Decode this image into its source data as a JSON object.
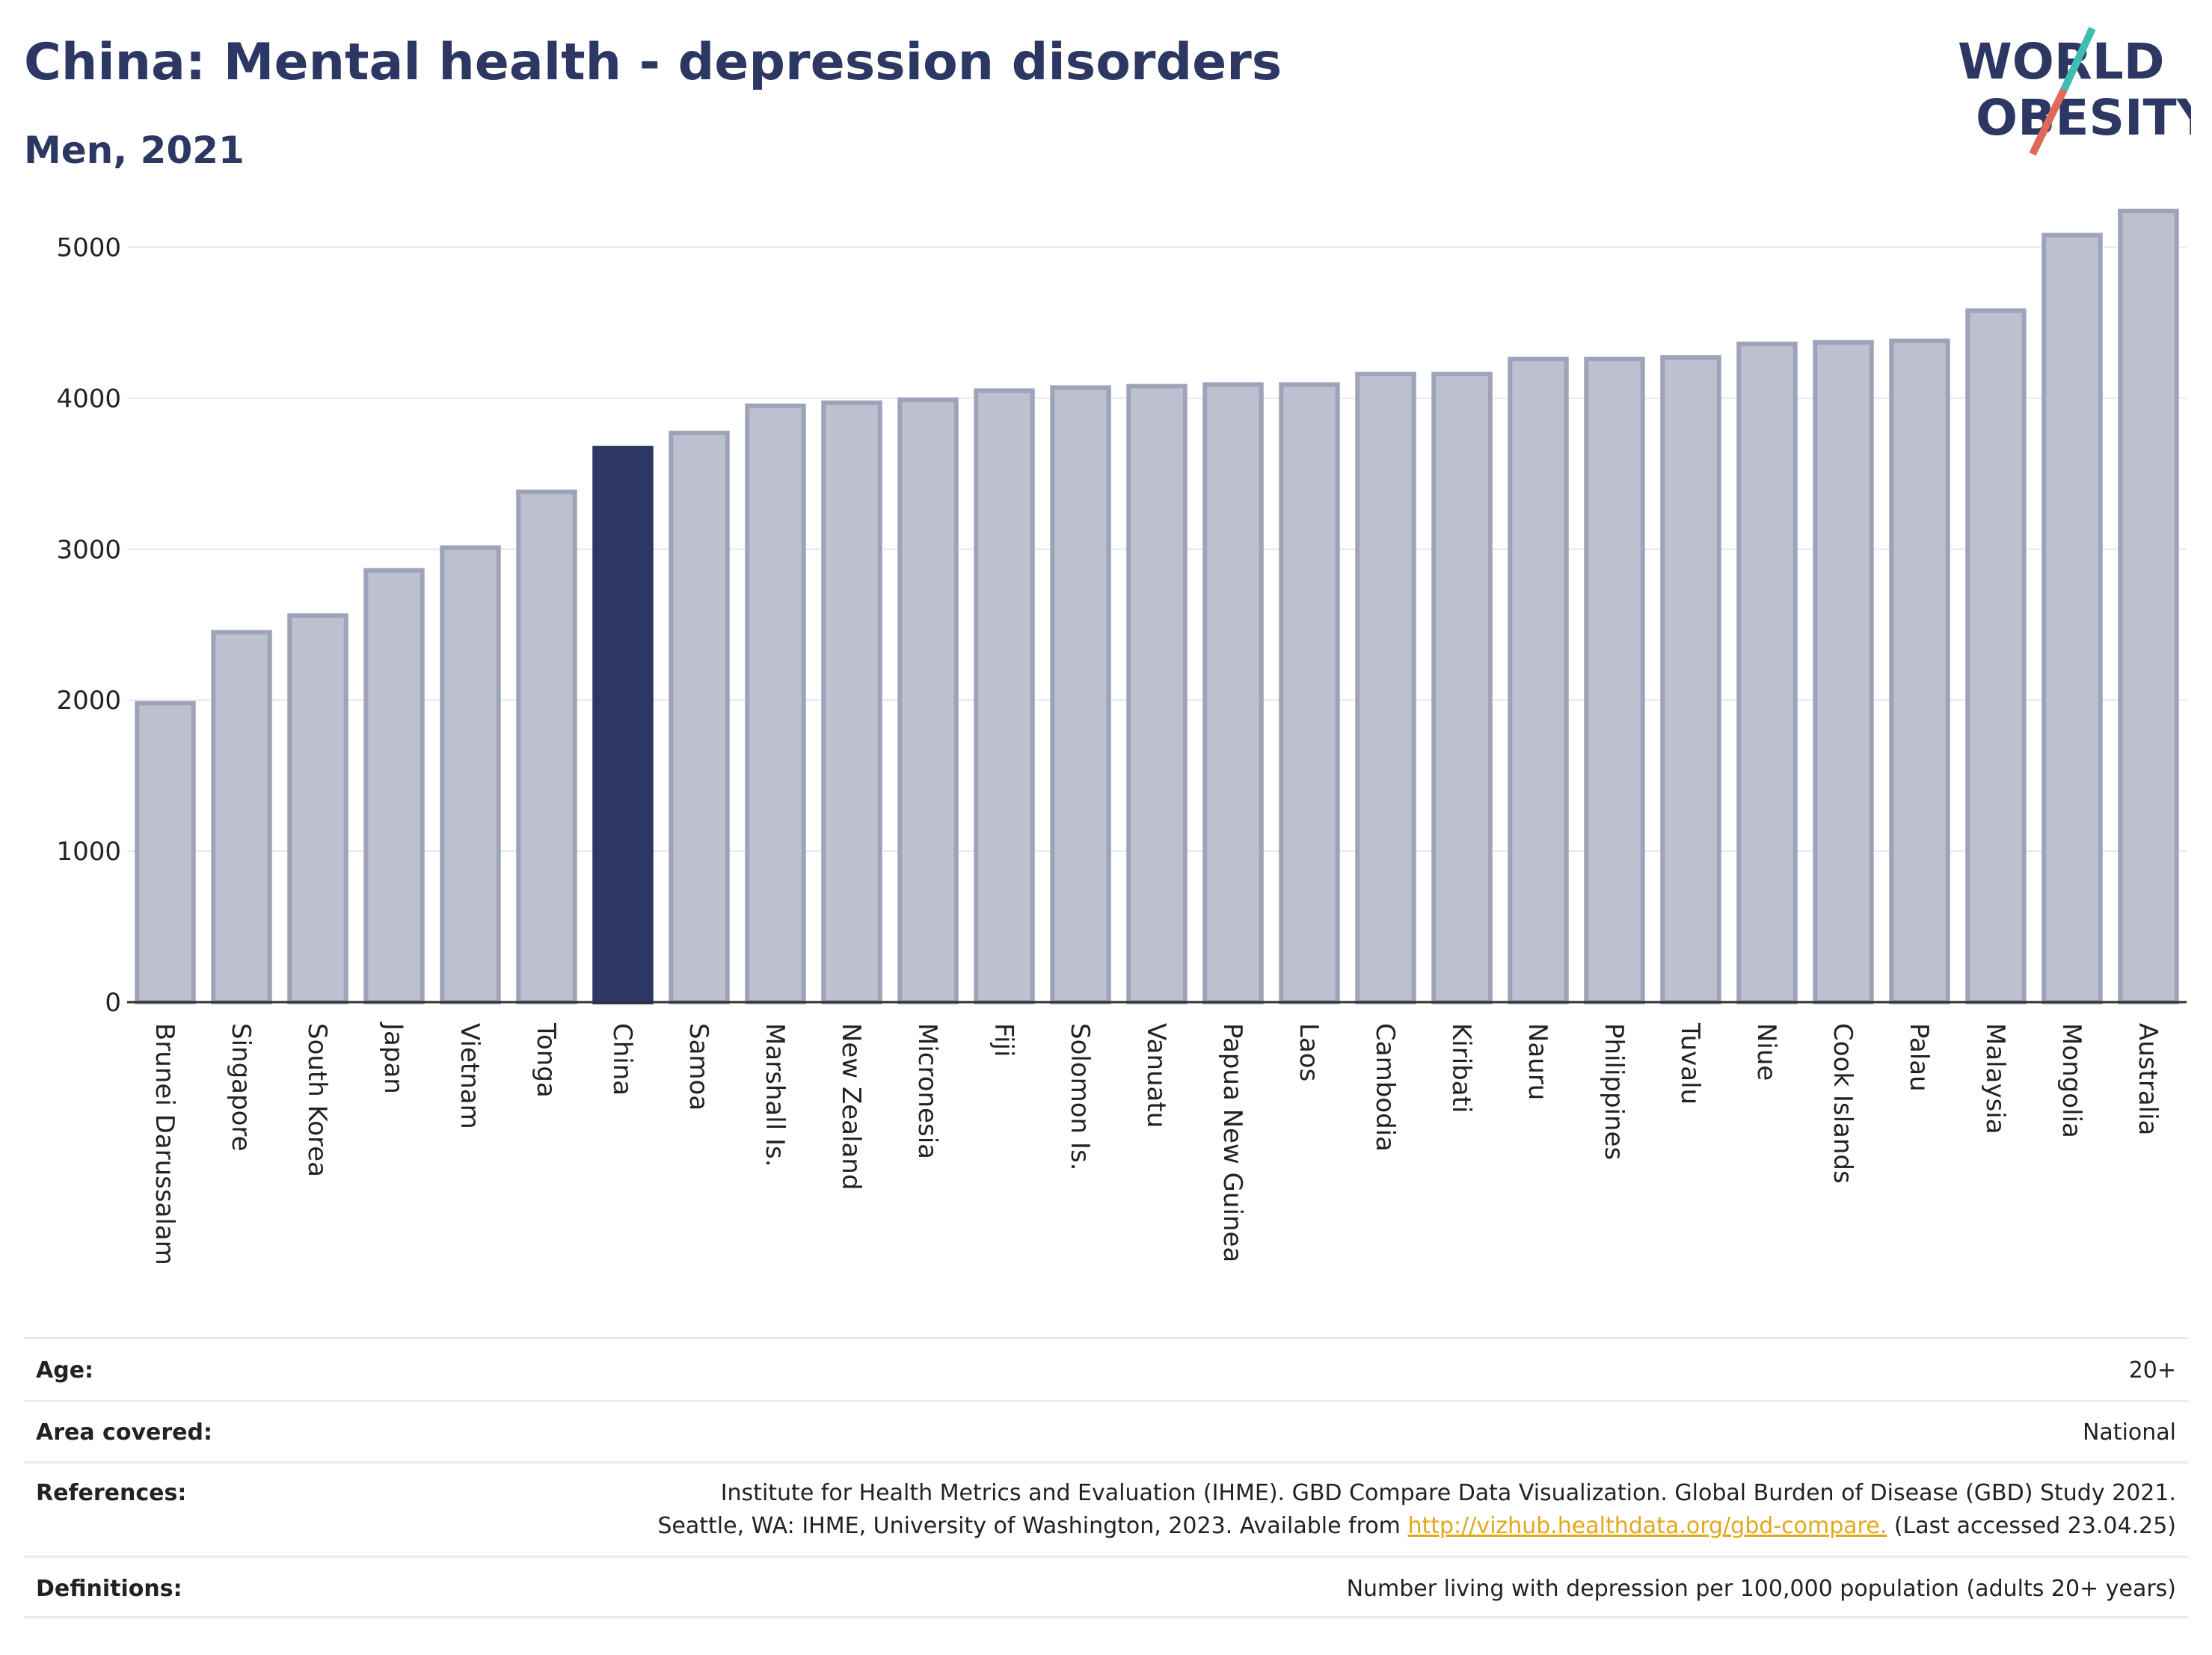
{
  "header": {
    "title": "China: Mental health - depression disorders",
    "subtitle": "Men, 2021"
  },
  "logo": {
    "line1": "WORLD",
    "line2": "OBESITY"
  },
  "colors": {
    "highlight": "#2c3763",
    "bar_fill": "#bdc0ce",
    "bar_stroke": "#9ea3b9",
    "logo_text": "#2c3763",
    "logo_teal": "#3fbdb1",
    "logo_red": "#e06a5a",
    "link": "#e3a71b"
  },
  "chart_data": {
    "type": "bar",
    "title": "China: Mental health - depression disorders",
    "subtitle": "Men, 2021",
    "xlabel": "",
    "ylabel": "",
    "highlight": "China",
    "ylim": [
      0,
      5300
    ],
    "yticks": [
      0,
      1000,
      2000,
      3000,
      4000,
      5000
    ],
    "grid": true,
    "categories": [
      "Brunei Darussalam",
      "Singapore",
      "South Korea",
      "Japan",
      "Vietnam",
      "Tonga",
      "China",
      "Samoa",
      "Marshall Is.",
      "New Zealand",
      "Micronesia",
      "Fiji",
      "Solomon Is.",
      "Vanuatu",
      "Papua New Guinea",
      "Laos",
      "Cambodia",
      "Kiribati",
      "Nauru",
      "Philippines",
      "Tuvalu",
      "Niue",
      "Cook Islands",
      "Palau",
      "Malaysia",
      "Mongolia",
      "Australia"
    ],
    "values": [
      1980,
      2450,
      2560,
      2860,
      3010,
      3380,
      3670,
      3770,
      3950,
      3970,
      3990,
      4050,
      4070,
      4080,
      4090,
      4090,
      4160,
      4160,
      4260,
      4260,
      4270,
      4360,
      4370,
      4380,
      4580,
      5080,
      5240
    ]
  },
  "meta": [
    {
      "key": "Age:",
      "lines": [
        "20+"
      ]
    },
    {
      "key": "Area covered:",
      "lines": [
        "National"
      ]
    },
    {
      "key": "References:",
      "lines": [
        "Institute for Health Metrics and Evaluation (IHME). GBD Compare Data Visualization. Global Burden of Disease (GBD) Study 2021."
      ],
      "line2_pre": "Seattle, WA: IHME, University of Washington, 2023. Available from ",
      "line2_link": "http://vizhub.healthdata.org/gbd-compare.",
      "line2_post": " (Last accessed 23.04.25)"
    },
    {
      "key": "Definitions:",
      "lines": [
        "Number living with depression per 100,000 population (adults 20+ years)"
      ]
    }
  ]
}
